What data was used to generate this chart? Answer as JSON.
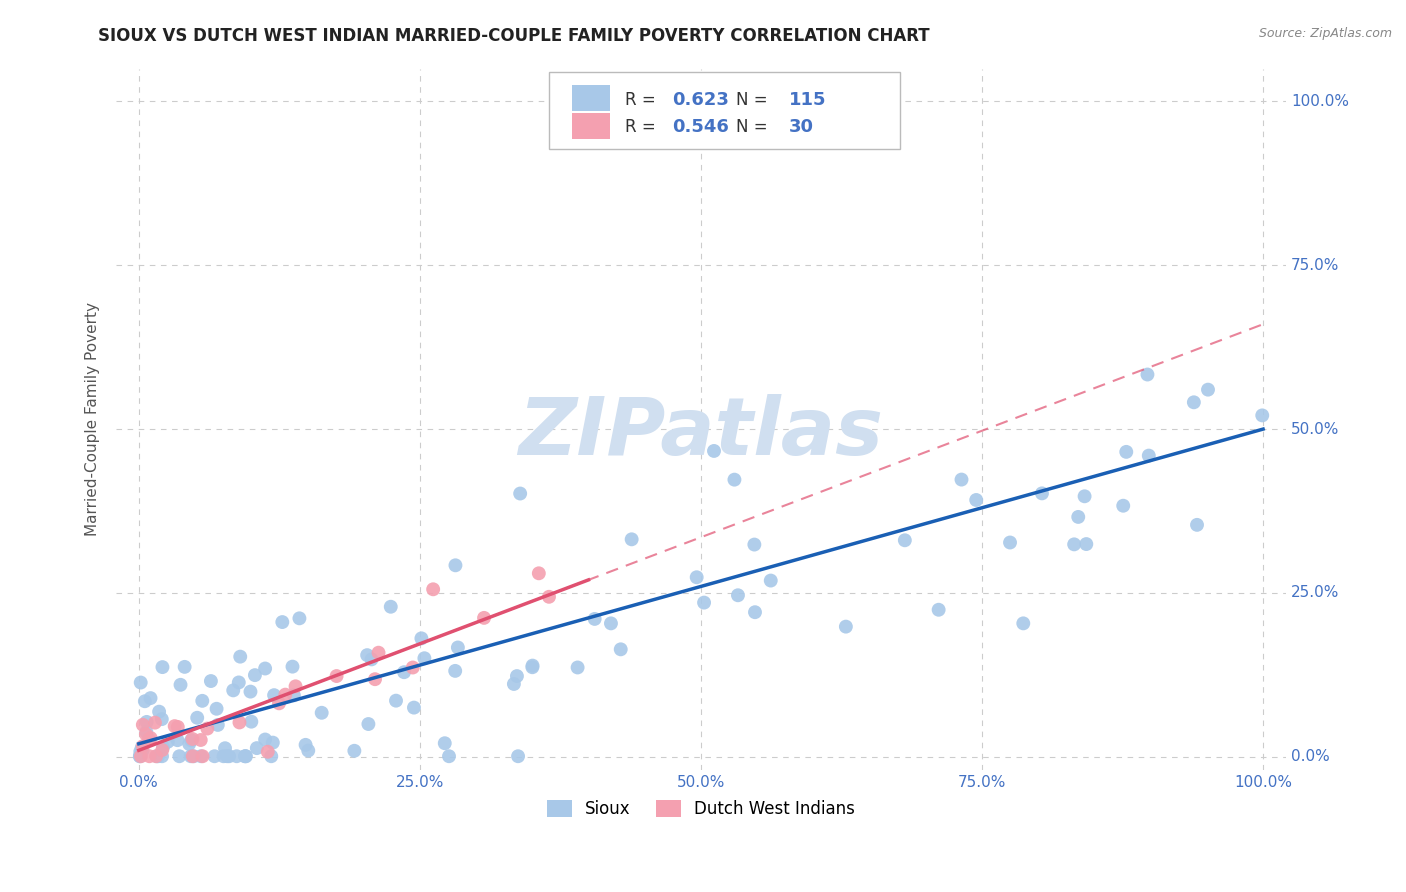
{
  "title": "SIOUX VS DUTCH WEST INDIAN MARRIED-COUPLE FAMILY POVERTY CORRELATION CHART",
  "source": "Source: ZipAtlas.com",
  "ylabel": "Married-Couple Family Poverty",
  "x_tick_labels": [
    "0.0%",
    "25.0%",
    "50.0%",
    "75.0%",
    "100.0%"
  ],
  "x_tick_vals": [
    0.0,
    0.25,
    0.5,
    0.75,
    1.0
  ],
  "y_tick_labels": [
    "0.0%",
    "25.0%",
    "50.0%",
    "75.0%",
    "100.0%"
  ],
  "y_tick_vals": [
    0.0,
    0.25,
    0.5,
    0.75,
    1.0
  ],
  "sioux_R": 0.623,
  "sioux_N": 115,
  "dutch_R": 0.546,
  "dutch_N": 30,
  "sioux_color": "#a8c8e8",
  "dutch_color": "#f4a0b0",
  "sioux_line_color": "#1a5fb4",
  "dutch_line_color": "#e05070",
  "background_color": "#ffffff",
  "grid_color": "#cccccc",
  "title_color": "#222222",
  "tick_color": "#4472c4",
  "label_color": "#4472c4",
  "watermark_color": "#d0dff0",
  "legend_box_color": "#e8e8e8"
}
